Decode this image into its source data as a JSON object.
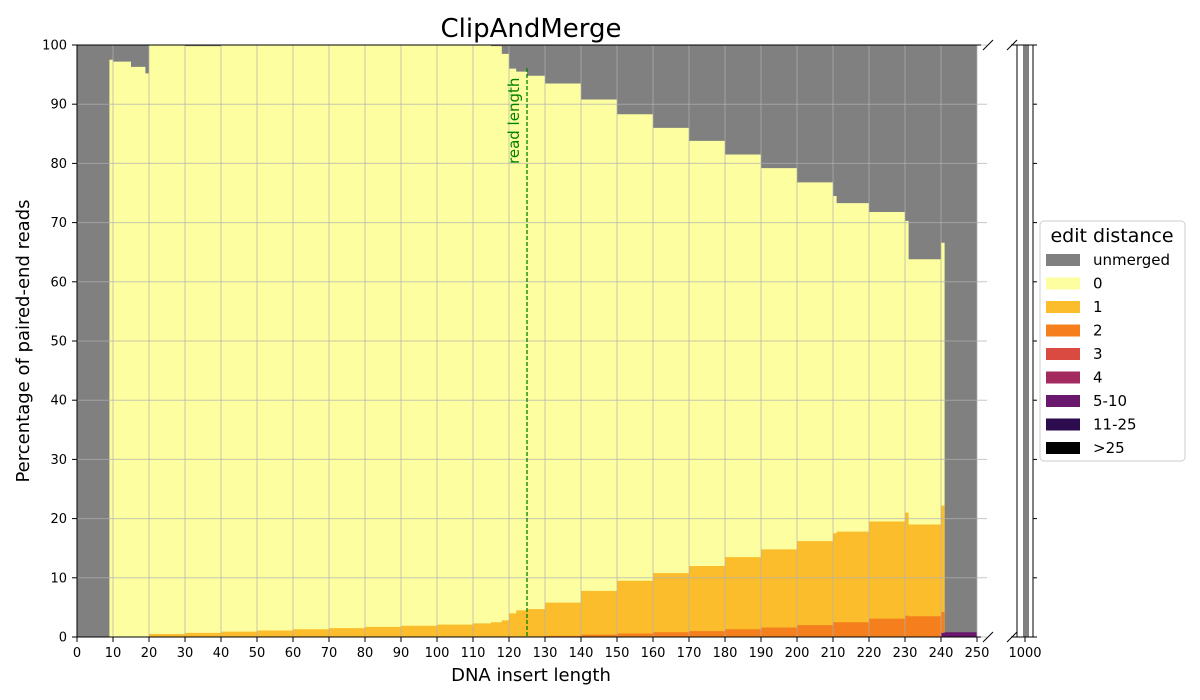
{
  "chart_data": {
    "type": "area",
    "title": "ClipAndMerge",
    "xlabel": "DNA insert length",
    "ylabel": "Percentage of paired-end reads",
    "xlim": [
      0,
      250
    ],
    "ylim": [
      0,
      100
    ],
    "x_ticks": [
      "0",
      "10",
      "20",
      "30",
      "40",
      "50",
      "60",
      "70",
      "80",
      "90",
      "100",
      "110",
      "120",
      "130",
      "140",
      "150",
      "160",
      "170",
      "180",
      "190",
      "200",
      "210",
      "220",
      "230",
      "240",
      "250"
    ],
    "y_ticks": [
      "0",
      "10",
      "20",
      "30",
      "40",
      "50",
      "60",
      "70",
      "80",
      "90",
      "100"
    ],
    "x_break_tick": "1000",
    "grid": true,
    "stacked": true,
    "annotation": {
      "text": "read length",
      "x": 125,
      "color": "#008000"
    },
    "legend": {
      "title": "edit distance",
      "placement": "right",
      "entries": [
        {
          "name": "unmerged",
          "color": "#808080"
        },
        {
          "name": "0",
          "color": "#fcfe9f"
        },
        {
          "name": "1",
          "color": "#fbbd2b"
        },
        {
          "name": "2",
          "color": "#f47f1c"
        },
        {
          "name": "3",
          "color": "#db4a40"
        },
        {
          "name": "4",
          "color": "#a32a5f"
        },
        {
          "name": "5-10",
          "color": "#6a176e"
        },
        {
          "name": "11-25",
          "color": "#2c0b4f"
        },
        {
          "name": ">25",
          "color": "#000000"
        }
      ]
    },
    "x": [
      0,
      9,
      10,
      15,
      19,
      20,
      30,
      40,
      50,
      60,
      70,
      80,
      90,
      100,
      110,
      115,
      118,
      120,
      122,
      125,
      130,
      140,
      150,
      160,
      170,
      180,
      190,
      200,
      210,
      211,
      220,
      230,
      231,
      240,
      241,
      250
    ],
    "series": [
      {
        "name": "1",
        "values": [
          0,
          0,
          0,
          0,
          0,
          0.5,
          0.7,
          0.9,
          1.1,
          1.3,
          1.5,
          1.7,
          1.9,
          2.1,
          2.3,
          2.5,
          2.8,
          4.0,
          4.5,
          4.7,
          5.8,
          7.8,
          9.5,
          10.8,
          12.0,
          13.5,
          14.8,
          16.2,
          17.5,
          17.8,
          19.5,
          21.0,
          19.0,
          22.2,
          0,
          0
        ]
      },
      {
        "name": "2",
        "values": [
          0,
          0,
          0,
          0,
          0,
          0,
          0,
          0,
          0,
          0,
          0,
          0,
          0,
          0,
          0,
          0,
          0,
          0,
          0,
          0,
          0.2,
          0.4,
          0.6,
          0.8,
          1.0,
          1.3,
          1.6,
          2.0,
          2.5,
          2.5,
          3.1,
          3.6,
          3.5,
          4.2,
          0,
          0
        ]
      },
      {
        "name": "5-10",
        "values": [
          0,
          0,
          0,
          0,
          0,
          0,
          0,
          0,
          0,
          0,
          0,
          0,
          0,
          0,
          0,
          0,
          0,
          0,
          0,
          0,
          0,
          0,
          0,
          0,
          0,
          0,
          0,
          0,
          0,
          0,
          0,
          0,
          0,
          0.7,
          0.8,
          0.8
        ]
      },
      {
        "name": "0_total",
        "values": [
          0,
          97.5,
          97.2,
          96.3,
          95.2,
          100,
          99.8,
          100,
          100,
          100,
          100,
          100,
          100,
          100,
          100,
          99.8,
          98.5,
          96.0,
          95.5,
          94.8,
          93.5,
          90.8,
          88.3,
          86.0,
          83.8,
          81.5,
          79.2,
          76.8,
          74.5,
          73.3,
          71.8,
          70.3,
          63.8,
          66.6,
          0,
          0
        ]
      }
    ],
    "break_panel": {
      "x": "1000",
      "unmerged": 100
    }
  }
}
